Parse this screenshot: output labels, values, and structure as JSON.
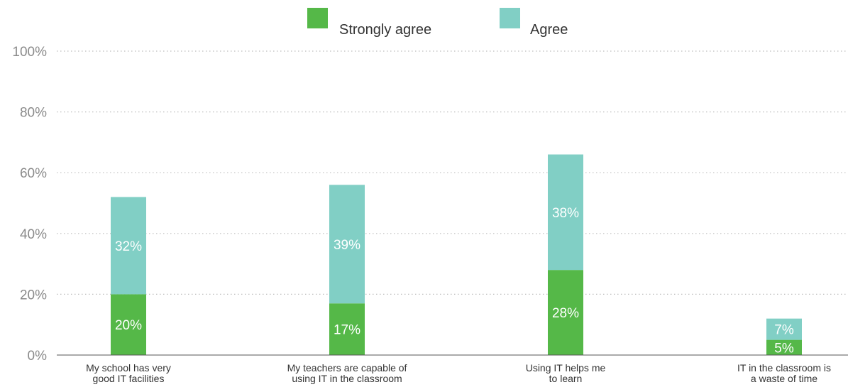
{
  "chart_data": {
    "type": "bar",
    "stacked": true,
    "categories": [
      [
        "My school has very",
        "good IT facilities"
      ],
      [
        "My teachers are capable of",
        "using IT in the classroom"
      ],
      [
        "Using IT helps me",
        "to learn"
      ],
      [
        "IT in the classroom is",
        "a waste of time"
      ]
    ],
    "series": [
      {
        "name": "Strongly agree",
        "values": [
          20,
          17,
          28,
          5
        ],
        "labels": [
          "20%",
          "17%",
          "28%",
          "5%"
        ],
        "color": "#55b848"
      },
      {
        "name": "Agree",
        "values": [
          32,
          39,
          38,
          7
        ],
        "labels": [
          "32%",
          "39%",
          "38%",
          "7%"
        ],
        "color": "#81cfc5"
      }
    ],
    "ylim": [
      0,
      100
    ],
    "yticks": [
      "0%",
      "20%",
      "40%",
      "60%",
      "80%",
      "100%"
    ],
    "grid": true,
    "legend": "top-center",
    "colors": {
      "gridline": "#bdbdbd",
      "axis": "#555555",
      "tick_text": "#8a8a8a"
    }
  }
}
